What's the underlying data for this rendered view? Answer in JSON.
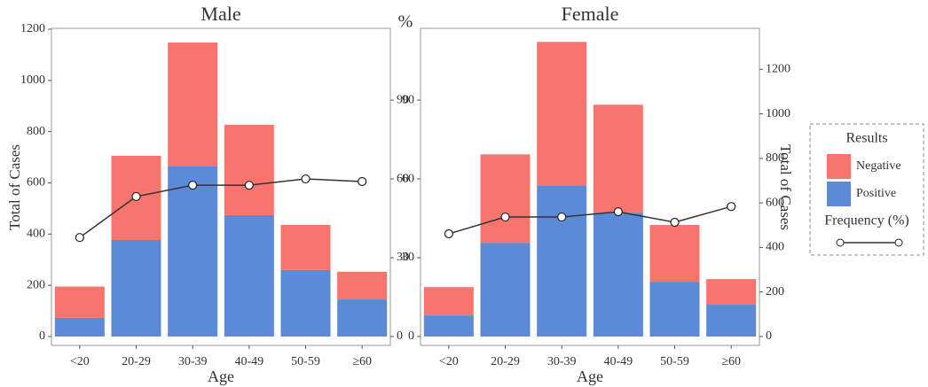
{
  "chart_data": [
    {
      "type": "bar",
      "title": "Male",
      "xlabel": "Age",
      "ylabel": "Total of Cases",
      "y2label": "%",
      "categories": [
        "<20",
        "20-29",
        "30-39",
        "40-49",
        "50-59",
        "≥60"
      ],
      "series": [
        {
          "name": "Positive",
          "color": "#5b8bd6",
          "values": [
            73,
            377,
            664,
            474,
            260,
            145
          ]
        },
        {
          "name": "Negative",
          "color": "#f7756c",
          "values": [
            122,
            329,
            484,
            353,
            176,
            108
          ]
        },
        {
          "name": "Frequency (%)",
          "color": "#333333",
          "axis": "y2",
          "values": [
            37.7,
            53.3,
            57.6,
            57.6,
            60,
            59
          ]
        }
      ],
      "ylim": [
        0,
        1200
      ],
      "yticks": [
        0,
        200,
        400,
        600,
        800,
        1000,
        1200
      ],
      "y2lim": [
        0,
        117
      ],
      "y2ticks": [
        0,
        30,
        60,
        90
      ]
    },
    {
      "type": "bar",
      "title": "Female",
      "xlabel": "Age",
      "ylabel": "Total of Cases",
      "categories": [
        "<20",
        "20-29",
        "30-39",
        "40-49",
        "50-59",
        "≥60"
      ],
      "series": [
        {
          "name": "Positive",
          "color": "#5b8bd6",
          "values": [
            95,
            421,
            679,
            556,
            246,
            143
          ]
        },
        {
          "name": "Negative",
          "color": "#f7756c",
          "values": [
            127,
            397,
            644,
            485,
            255,
            115
          ]
        },
        {
          "name": "Frequency (%)",
          "color": "#333333",
          "axis": "y2",
          "values": [
            39.1,
            45.5,
            45.5,
            47.5,
            43.5,
            49.5
          ]
        }
      ],
      "ylim": [
        0,
        1380
      ],
      "yticks": [
        0,
        200,
        400,
        600,
        800,
        1000,
        1200
      ],
      "y2lim": [
        0,
        117
      ],
      "y2ticks": [
        0,
        30,
        60,
        90
      ]
    }
  ],
  "legend": {
    "title": "Results"
  }
}
